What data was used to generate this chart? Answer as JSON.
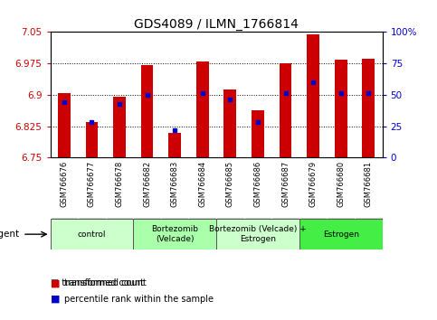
{
  "title": "GDS4089 / ILMN_1766814",
  "samples": [
    "GSM766676",
    "GSM766677",
    "GSM766678",
    "GSM766682",
    "GSM766683",
    "GSM766684",
    "GSM766685",
    "GSM766686",
    "GSM766687",
    "GSM766679",
    "GSM766680",
    "GSM766681"
  ],
  "transformed_count": [
    6.905,
    6.835,
    6.895,
    6.97,
    6.808,
    6.98,
    6.912,
    6.862,
    6.975,
    7.044,
    6.983,
    6.987
  ],
  "percentile_rank": [
    44,
    28,
    43,
    50,
    22,
    51,
    46,
    28,
    51,
    60,
    51,
    51
  ],
  "ymin": 6.75,
  "ymax": 7.05,
  "yticks": [
    6.75,
    6.825,
    6.9,
    6.975,
    7.05
  ],
  "right_yticks": [
    0,
    25,
    50,
    75,
    100
  ],
  "bar_color": "#cc0000",
  "dot_color": "#0000cc",
  "groups": [
    {
      "label": "control",
      "start": 0,
      "end": 3,
      "color": "#ccffcc"
    },
    {
      "label": "Bortezomib\n(Velcade)",
      "start": 3,
      "end": 6,
      "color": "#aaffaa"
    },
    {
      "label": "Bortezomib (Velcade) +\nEstrogen",
      "start": 6,
      "end": 9,
      "color": "#ccffcc"
    },
    {
      "label": "Estrogen",
      "start": 9,
      "end": 12,
      "color": "#44ee44"
    }
  ],
  "bar_width": 0.45,
  "grid_color": "#000000",
  "left_color": "#cc0000",
  "right_color": "#0000cc",
  "bg_color": "#ffffff",
  "plot_bg": "#ffffff",
  "label_bg": "#d8d8d8"
}
